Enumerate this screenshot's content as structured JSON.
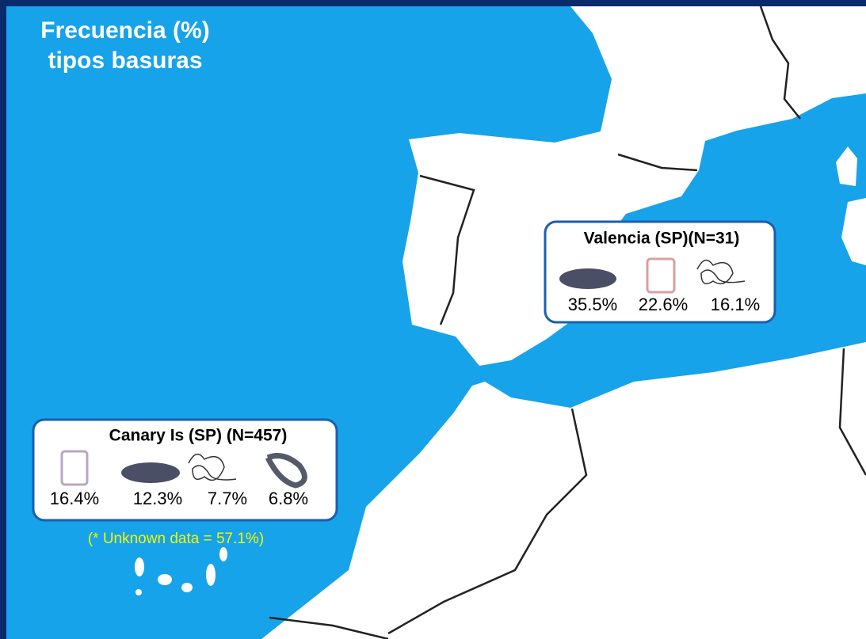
{
  "title_lines": [
    "Frecuencia (%)",
    "tipos basuras"
  ],
  "boxes": [
    {
      "name": "Valencia (SP)(N=31)",
      "items": [
        "35.5%",
        "22.6%",
        "16.1%"
      ]
    },
    {
      "name": "Canary Is (SP) (N=457)",
      "items": [
        "16.4%",
        "12.3%",
        "7.7%",
        "6.8%"
      ]
    }
  ],
  "note": "(* Unknown data =  57.1%)"
}
